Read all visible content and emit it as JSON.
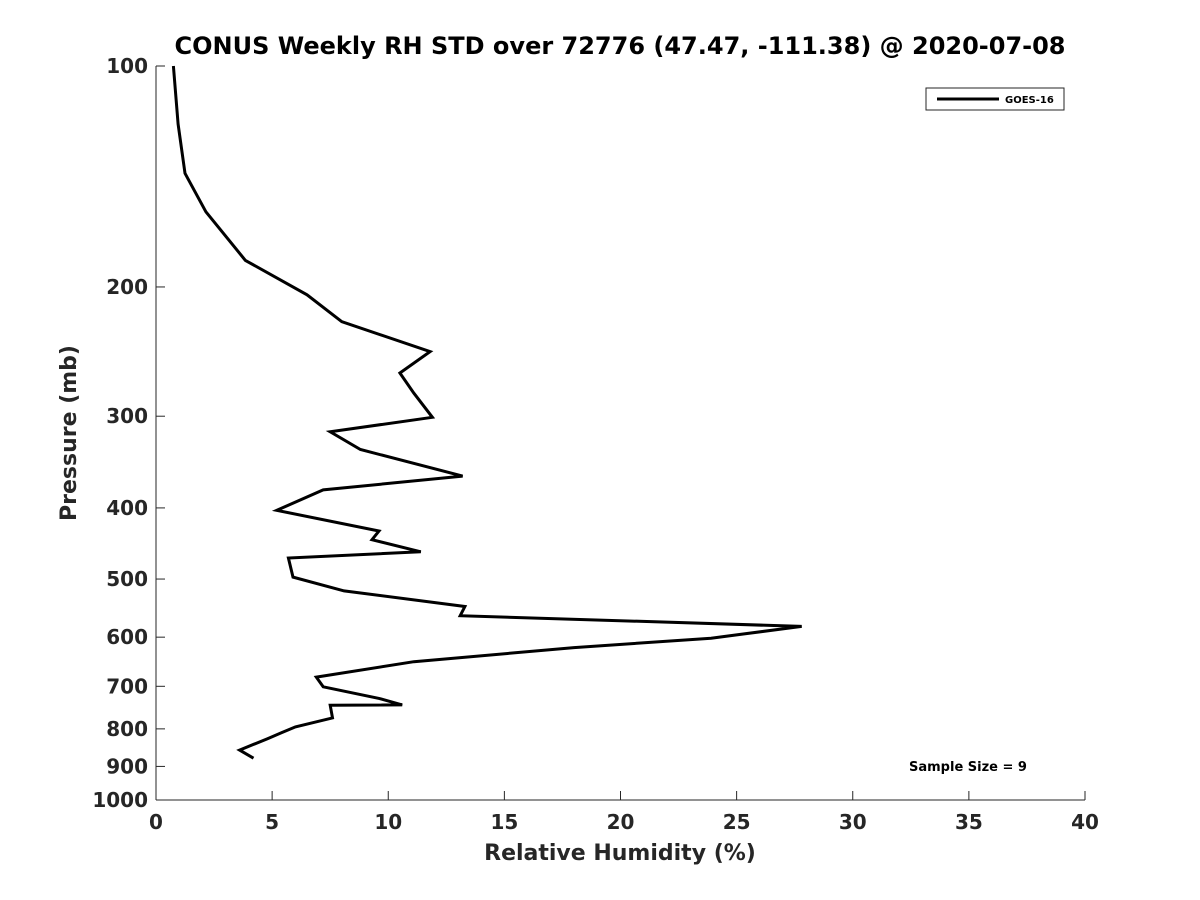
{
  "chart_data": {
    "type": "line",
    "title": "CONUS Weekly RH STD over 72776 (47.47, -111.38) @ 2020-07-08",
    "xlabel": "Relative Humidity (%)",
    "ylabel": "Pressure (mb)",
    "xlim": [
      0,
      40
    ],
    "ylim": [
      100,
      1000
    ],
    "y_scale": "log",
    "y_reversed": true,
    "grid": false,
    "xticks": [
      0,
      5,
      10,
      15,
      20,
      25,
      30,
      35,
      40
    ],
    "xtick_labels": [
      "0",
      "5",
      "10",
      "15",
      "20",
      "25",
      "30",
      "35",
      "40"
    ],
    "yticks": [
      100,
      200,
      300,
      400,
      500,
      600,
      700,
      800,
      900,
      1000
    ],
    "ytick_labels": [
      "100",
      "200",
      "300",
      "400",
      "500",
      "600",
      "700",
      "800",
      "900",
      "1000"
    ],
    "legend_position": "top-right",
    "series": [
      {
        "name": "GOES-16",
        "color": "#000000",
        "x": [
          0.75,
          0.95,
          1.25,
          2.15,
          3.85,
          6.5,
          8.0,
          11.8,
          10.5,
          11.1,
          11.9,
          7.5,
          8.8,
          13.2,
          7.2,
          5.2,
          9.6,
          9.3,
          11.4,
          5.7,
          5.9,
          8.1,
          13.3,
          13.1,
          27.8,
          23.9,
          18.0,
          11.1,
          6.9,
          7.2,
          9.6,
          10.6,
          7.5,
          7.6,
          6.0,
          5.4,
          4.8,
          3.6,
          4.2
        ],
        "y": [
          100,
          120,
          140,
          158,
          184,
          205,
          223,
          245,
          262,
          279,
          301,
          315,
          333,
          362,
          378,
          403,
          430,
          442,
          459,
          468,
          497,
          519,
          545,
          561,
          580,
          602,
          620,
          648,
          680,
          701,
          727,
          742,
          743,
          773,
          795,
          810,
          825,
          855,
          877
        ]
      }
    ],
    "annotations": [
      "Sample Size = 9"
    ]
  }
}
